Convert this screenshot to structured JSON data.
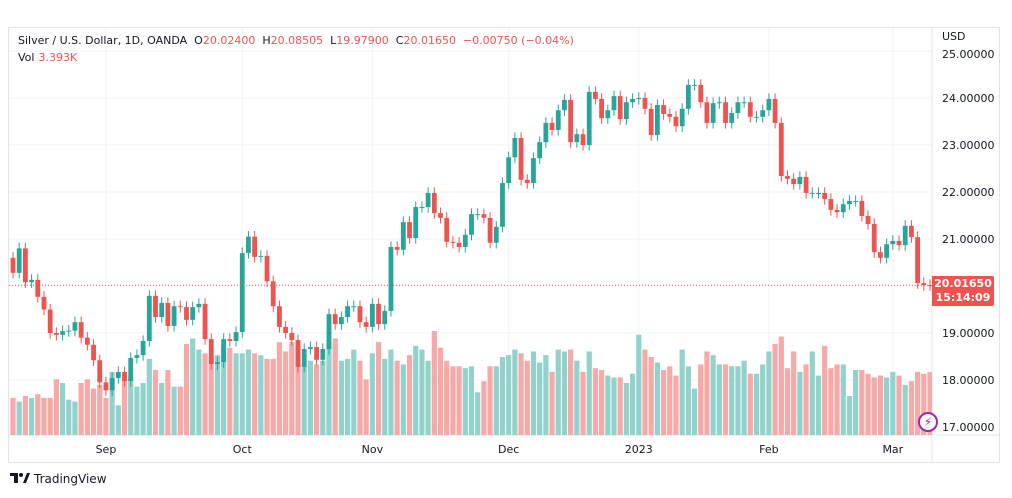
{
  "legend": {
    "symbol": "Silver / U.S. Dollar, 1D, OANDA",
    "open_label": "O",
    "open": "20.02400",
    "high_label": "H",
    "high": "20.08505",
    "low_label": "L",
    "low": "19.97900",
    "close_label": "C",
    "close": "20.01650",
    "change": "−0.00750 (−0.04%)",
    "vol_label": "Vol",
    "vol": "3.393K"
  },
  "currency": "USD",
  "last_price": {
    "price": "20.01650",
    "countdown": "15:14:09"
  },
  "footer": {
    "brand": "TradingView"
  },
  "colors": {
    "up": "#26a69a",
    "down": "#ef5350",
    "vol_up": "#92d2cc",
    "vol_down": "#f7a9a7",
    "grid": "#f0f3fa"
  },
  "chart_data": {
    "type": "candlestick",
    "title": "Silver / U.S. Dollar, 1D, OANDA",
    "ylabel": "USD",
    "ylim": [
      17,
      25.2
    ],
    "y_ticks": [
      "25.00000",
      "24.00000",
      "23.00000",
      "22.00000",
      "21.00000",
      "20.00000",
      "19.00000",
      "18.00000",
      "17.00000"
    ],
    "y_tick_values": [
      25,
      24,
      23,
      22,
      21,
      20,
      19,
      18,
      17
    ],
    "x_ticks": [
      {
        "label": "Sep",
        "bar": 15
      },
      {
        "label": "Oct",
        "bar": 37
      },
      {
        "label": "Nov",
        "bar": 58
      },
      {
        "label": "Dec",
        "bar": 80
      },
      {
        "label": "2023",
        "bar": 101
      },
      {
        "label": "Feb",
        "bar": 122
      },
      {
        "label": "Mar",
        "bar": 142
      }
    ],
    "first_open": 20.6,
    "close": [
      20.28,
      20.8,
      20.08,
      20.13,
      19.77,
      19.5,
      19.0,
      18.96,
      19.04,
      19.05,
      19.23,
      18.9,
      18.75,
      18.42,
      17.95,
      17.78,
      18.04,
      18.17,
      17.98,
      18.47,
      18.53,
      18.83,
      19.79,
      19.34,
      19.64,
      19.15,
      19.57,
      19.55,
      19.28,
      19.55,
      19.62,
      18.87,
      18.34,
      18.38,
      18.87,
      18.83,
      19.02,
      20.7,
      21.05,
      20.62,
      20.64,
      20.1,
      19.57,
      19.13,
      19.0,
      18.85,
      18.28,
      18.66,
      18.7,
      18.43,
      18.66,
      19.4,
      19.19,
      19.34,
      19.57,
      19.57,
      19.23,
      19.13,
      19.62,
      19.19,
      19.47,
      20.83,
      20.77,
      21.36,
      21.02,
      21.68,
      21.68,
      21.98,
      21.55,
      21.45,
      20.94,
      20.92,
      20.83,
      21.09,
      21.53,
      21.53,
      21.45,
      20.92,
      21.26,
      22.19,
      22.74,
      23.15,
      22.26,
      22.19,
      22.72,
      23.06,
      23.47,
      23.32,
      23.74,
      23.96,
      23.06,
      23.23,
      23.0,
      24.13,
      23.98,
      23.57,
      23.74,
      24.04,
      23.55,
      23.91,
      23.98,
      24.0,
      23.77,
      23.21,
      23.85,
      23.66,
      23.6,
      23.4,
      23.77,
      24.28,
      24.28,
      23.91,
      23.47,
      23.89,
      23.91,
      23.47,
      23.68,
      23.91,
      23.91,
      23.6,
      23.6,
      23.74,
      23.98,
      23.47,
      22.34,
      22.28,
      22.17,
      22.32,
      21.98,
      21.98,
      21.98,
      21.85,
      21.62,
      21.57,
      21.74,
      21.81,
      21.81,
      21.49,
      21.32,
      20.72,
      20.6,
      20.89,
      20.96,
      20.87,
      21.28,
      21.04,
      20.06,
      20.02,
      20.0165
    ],
    "volume_k": [
      2.0,
      1.8,
      2.1,
      2.0,
      2.2,
      2.0,
      2.0,
      3.0,
      2.8,
      1.9,
      1.8,
      2.8,
      3.0,
      2.5,
      2.7,
      2.0,
      3.4,
      1.6,
      3.0,
      3.1,
      2.6,
      2.8,
      4.1,
      3.5,
      2.8,
      3.5,
      2.6,
      2.6,
      4.9,
      5.2,
      4.6,
      4.4,
      4.2,
      4.3,
      4.8,
      4.7,
      4.4,
      4.4,
      4.6,
      4.4,
      4.3,
      4.1,
      4.1,
      5.0,
      4.5,
      5.0,
      4.8,
      3.8,
      4.0,
      3.8,
      4.0,
      5.0,
      5.2,
      4.0,
      4.1,
      4.6,
      4.0,
      3.0,
      4.4,
      5.0,
      4.1,
      4.6,
      4.0,
      3.8,
      4.3,
      4.8,
      4.6,
      4.0,
      5.6,
      4.7,
      4.0,
      3.7,
      3.7,
      3.6,
      3.7,
      2.3,
      2.9,
      3.7,
      3.7,
      4.2,
      4.3,
      4.6,
      4.4,
      4.0,
      4.5,
      3.9,
      4.3,
      3.4,
      4.6,
      4.5,
      4.6,
      4.0,
      3.4,
      4.5,
      3.6,
      3.5,
      3.2,
      3.1,
      3.1,
      2.8,
      3.3,
      5.4,
      4.6,
      4.2,
      3.9,
      3.5,
      3.7,
      3.2,
      4.6,
      3.7,
      2.5,
      3.8,
      4.5,
      4.3,
      3.8,
      3.8,
      3.7,
      3.7,
      4.0,
      3.3,
      3.3,
      3.8,
      4.5,
      4.9,
      5.3,
      3.6,
      4.5,
      3.4,
      3.8,
      4.5,
      3.2,
      4.8,
      3.6,
      3.8,
      3.8,
      2.1,
      3.5,
      3.5,
      3.3,
      3.1,
      3.2,
      3.1,
      3.4,
      3.2,
      2.7,
      2.9,
      3.4,
      3.3,
      3.393
    ],
    "last_price_line": 20.0165,
    "grid": true
  }
}
